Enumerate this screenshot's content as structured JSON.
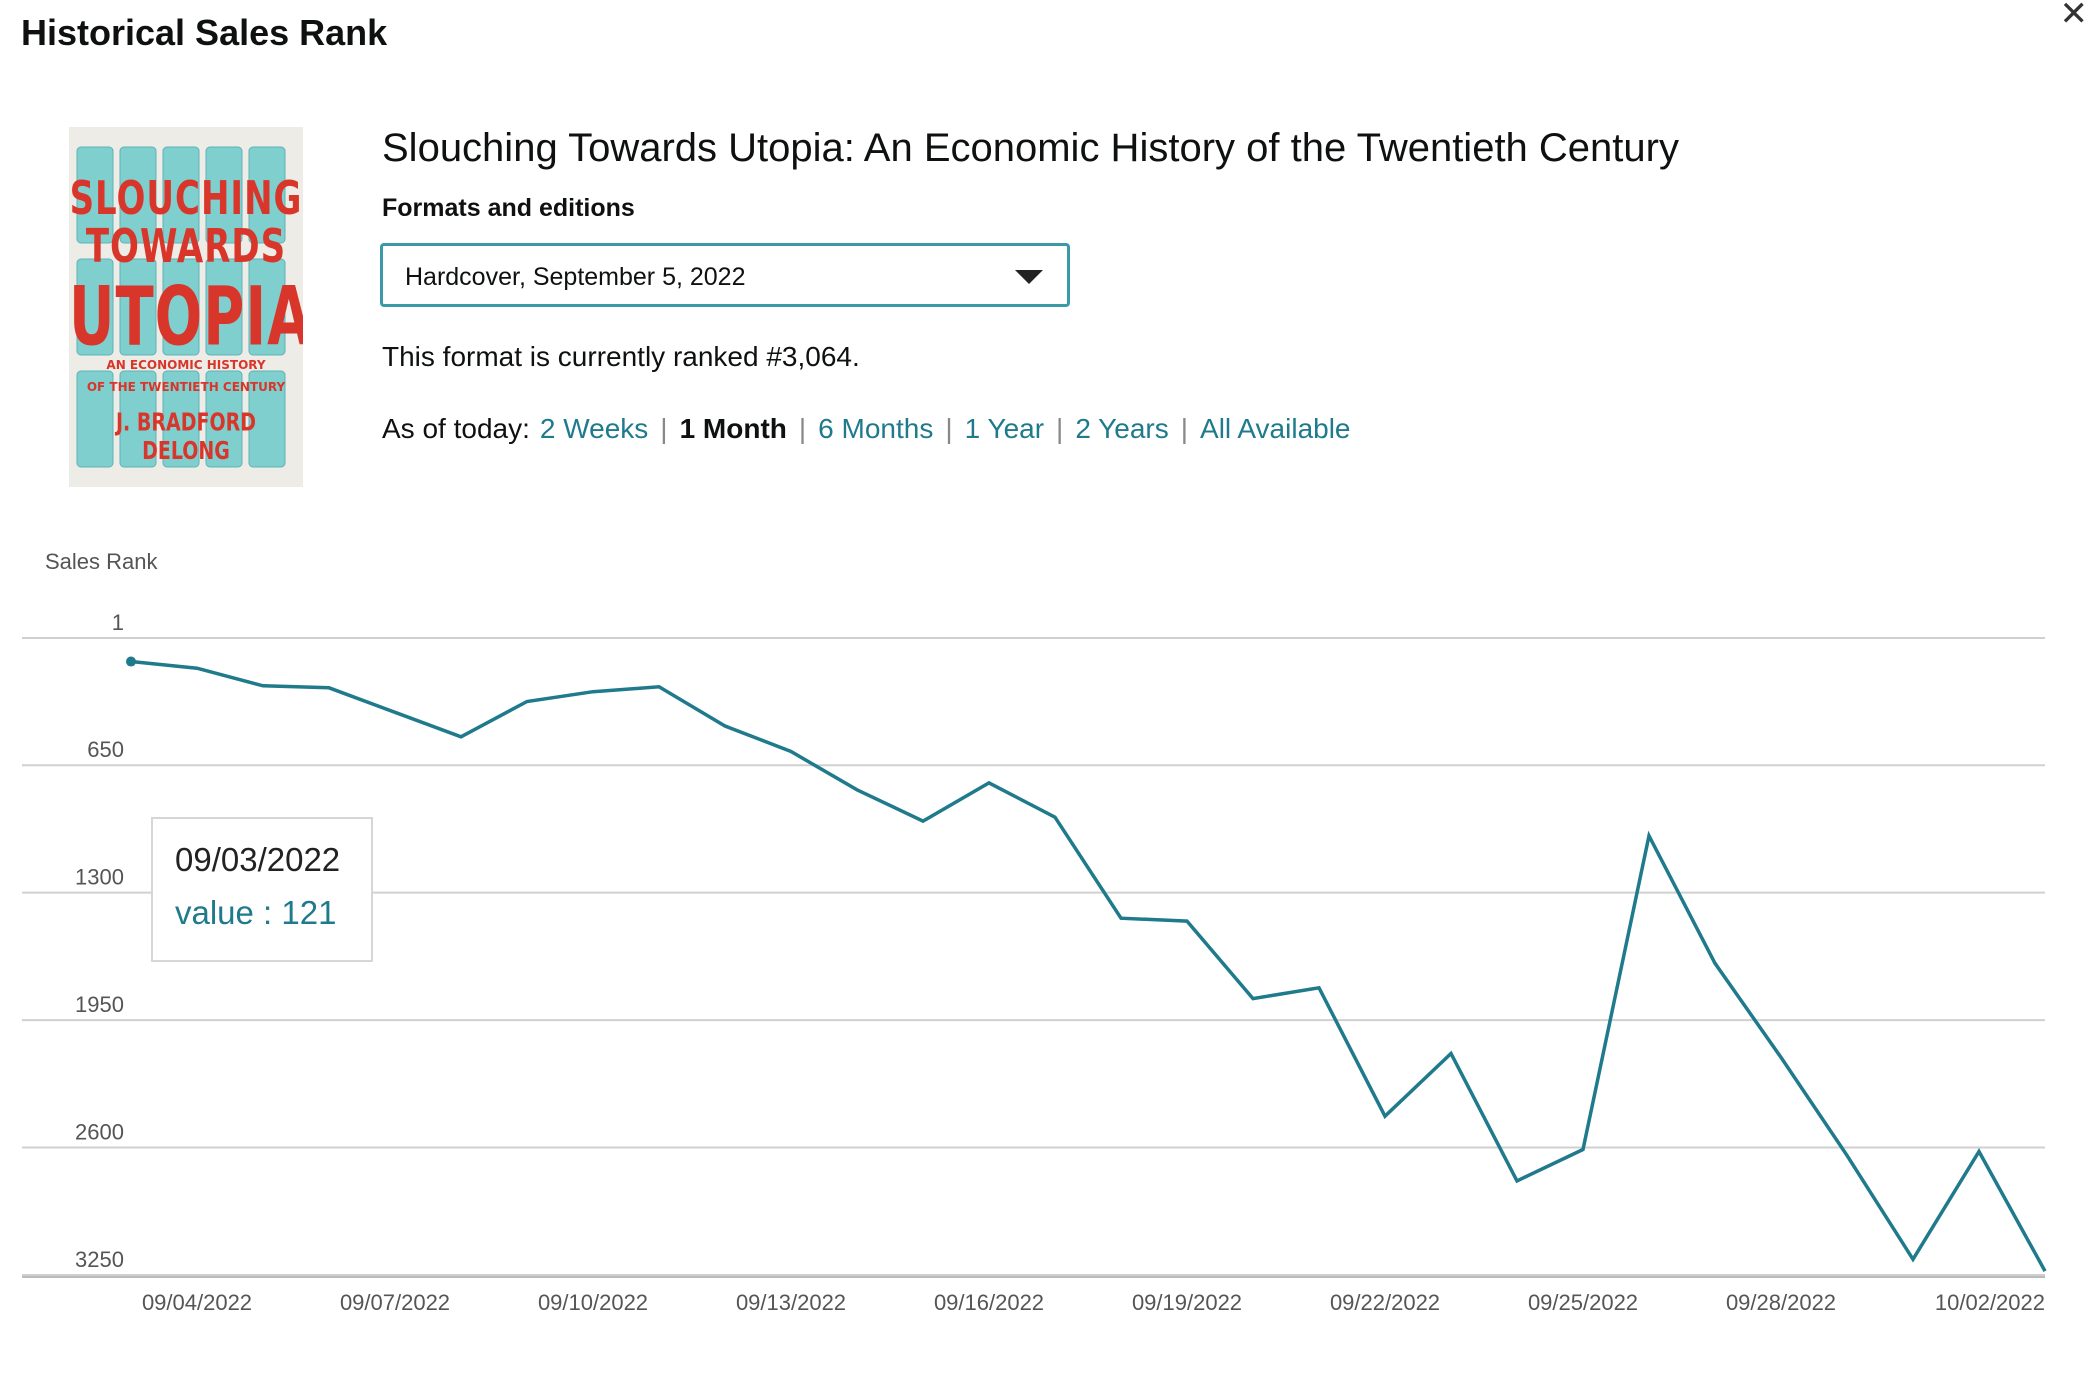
{
  "page": {
    "heading": "Historical Sales Rank"
  },
  "book": {
    "cover": {
      "line1": "SLOUCHING",
      "line2": "TOWARDS",
      "line3": "UTOPIA",
      "subtitle1": "AN ECONOMIC HISTORY",
      "subtitle2": "OF THE TWENTIETH CENTURY",
      "author": "J. BRADFORD DELONG"
    },
    "title": "Slouching Towards Utopia: An Economic History of the Twentieth Century"
  },
  "formats": {
    "label": "Formats and editions",
    "selected": "Hardcover, September 5, 2022"
  },
  "rank": {
    "text": "This format is currently ranked #3,064."
  },
  "range": {
    "lead": "As of today:",
    "options": [
      "2 Weeks",
      "1 Month",
      "6 Months",
      "1 Year",
      "2 Years",
      "All Available"
    ],
    "active": "1 Month"
  },
  "tooltip": {
    "date": "09/03/2022",
    "value_text": "value : 121"
  },
  "colors": {
    "line": "#1f7a8c",
    "link": "#1f7a8c",
    "select_border": "#3a9aa8"
  },
  "chart_data": {
    "type": "line",
    "ylabel": "Sales Rank",
    "y_reversed": true,
    "ylim": [
      1,
      3250
    ],
    "yticks": [
      1,
      650,
      1300,
      1950,
      2600,
      3250
    ],
    "xlim": [
      "09/03/2022",
      "10/02/2022"
    ],
    "xticks": [
      "09/04/2022",
      "09/07/2022",
      "09/10/2022",
      "09/13/2022",
      "09/16/2022",
      "09/19/2022",
      "09/22/2022",
      "09/25/2022",
      "09/28/2022",
      "10/02/2022"
    ],
    "grid": true,
    "series": [
      {
        "x": [
          "09/03/2022",
          "09/04/2022",
          "09/05/2022",
          "09/06/2022",
          "09/07/2022",
          "09/08/2022",
          "09/09/2022",
          "09/10/2022",
          "09/11/2022",
          "09/12/2022",
          "09/13/2022",
          "09/14/2022",
          "09/15/2022",
          "09/16/2022",
          "09/17/2022",
          "09/18/2022",
          "09/19/2022",
          "09/20/2022",
          "09/21/2022",
          "09/22/2022",
          "09/23/2022",
          "09/24/2022",
          "09/25/2022",
          "09/26/2022",
          "09/27/2022",
          "09/28/2022",
          "09/29/2022",
          "09/30/2022",
          "10/01/2022",
          "10/02/2022"
        ],
        "y": [
          121,
          155,
          245,
          255,
          380,
          505,
          325,
          275,
          250,
          450,
          580,
          775,
          935,
          740,
          915,
          1430,
          1445,
          1840,
          1785,
          2440,
          2120,
          2770,
          2610,
          1010,
          1660,
          2140,
          2640,
          3170,
          2620,
          3230
        ]
      }
    ],
    "highlight": {
      "x": "09/03/2022",
      "y": 121
    }
  }
}
